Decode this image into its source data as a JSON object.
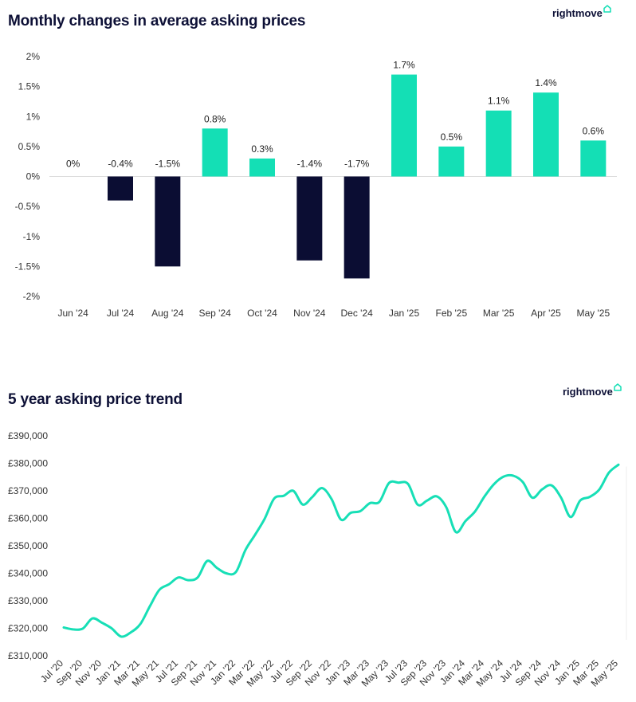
{
  "colors": {
    "positive": "#14dfb5",
    "negative": "#0b0d33",
    "line": "#17dfb6",
    "text": "#0d1036",
    "grid": "#e6e6e6"
  },
  "brand": {
    "name": "rightmove",
    "icon": "house-icon"
  },
  "chart_data": [
    {
      "type": "bar",
      "title": "Monthly changes in average asking prices",
      "categories": [
        "Jun '24",
        "Jul '24",
        "Aug '24",
        "Sep '24",
        "Oct '24",
        "Nov '24",
        "Dec '24",
        "Jan '25",
        "Feb '25",
        "Mar '25",
        "Apr '25",
        "May '25"
      ],
      "values": [
        0,
        -0.4,
        -1.5,
        0.8,
        0.3,
        -1.4,
        -1.7,
        1.7,
        0.5,
        1.1,
        1.4,
        0.6
      ],
      "data_labels": [
        "0%",
        "-0.4%",
        "-1.5%",
        "0.8%",
        "0.3%",
        "-1.4%",
        "-1.7%",
        "1.7%",
        "0.5%",
        "1.1%",
        "1.4%",
        "0.6%"
      ],
      "yticks": [
        2,
        1.5,
        1,
        0.5,
        0,
        -0.5,
        -1,
        -1.5,
        -2
      ],
      "ytick_labels": [
        "2%",
        "1.5%",
        "1%",
        "0.5%",
        "0%",
        "-0.5%",
        "-1%",
        "-1.5%",
        "-2%"
      ],
      "ylim": [
        -2,
        2
      ],
      "grid": false
    },
    {
      "type": "line",
      "title": "5 year asking price trend",
      "x_labels": [
        "Jul '20",
        "Sep '20",
        "Nov '20",
        "Jan '21",
        "Mar '21",
        "May '21",
        "Jul '21",
        "Sep '21",
        "Nov '21",
        "Jan '22",
        "Mar '22",
        "May '22",
        "Jul '22",
        "Sep '22",
        "Nov '22",
        "Jan '23",
        "Mar '23",
        "May '23",
        "Jul '23",
        "Sep '23",
        "Nov '23",
        "Jan '24",
        "Mar '24",
        "May '24",
        "Jul '24",
        "Sep '24",
        "Nov '24",
        "Jan '25",
        "Mar '25",
        "May '25"
      ],
      "x": [
        "Jul 2020",
        "Aug 2020",
        "Sep 2020",
        "Oct 2020",
        "Nov 2020",
        "Dec 2020",
        "Jan 2021",
        "Feb 2021",
        "Mar 2021",
        "Apr 2021",
        "May 2021",
        "Jun 2021",
        "Jul 2021",
        "Aug 2021",
        "Sep 2021",
        "Oct 2021",
        "Nov 2021",
        "Dec 2021",
        "Jan 2022",
        "Feb 2022",
        "Mar 2022",
        "Apr 2022",
        "May 2022",
        "Jun 2022",
        "Jul 2022",
        "Aug 2022",
        "Sep 2022",
        "Oct 2022",
        "Nov 2022",
        "Dec 2022",
        "Jan 2023",
        "Feb 2023",
        "Mar 2023",
        "Apr 2023",
        "May 2023",
        "Jun 2023",
        "Jul 2023",
        "Aug 2023",
        "Sep 2023",
        "Oct 2023",
        "Nov 2023",
        "Dec 2023",
        "Jan 2024",
        "Feb 2024",
        "Mar 2024",
        "Apr 2024",
        "May 2024",
        "Jun 2024",
        "Jul 2024",
        "Aug 2024",
        "Sep 2024",
        "Oct 2024",
        "Nov 2024",
        "Dec 2024",
        "Jan 2025",
        "Feb 2025",
        "Mar 2025",
        "Apr 2025",
        "May 2025"
      ],
      "values": [
        320300,
        319600,
        319900,
        323600,
        322000,
        320000,
        317000,
        318500,
        321500,
        328000,
        334000,
        336000,
        338500,
        337500,
        338500,
        344500,
        342000,
        340000,
        340500,
        348500,
        354000,
        359800,
        367200,
        368200,
        370000,
        365000,
        367800,
        371000,
        367000,
        359500,
        362000,
        362600,
        365500,
        366000,
        372800,
        373000,
        372500,
        365000,
        366500,
        368000,
        364000,
        355000,
        359000,
        362500,
        368000,
        372500,
        375200,
        375500,
        373200,
        367500,
        370500,
        372000,
        367500,
        360500,
        366500,
        367800,
        370500,
        376600,
        379500
      ],
      "yticks": [
        390000,
        380000,
        370000,
        360000,
        350000,
        340000,
        330000,
        320000,
        310000
      ],
      "ytick_labels": [
        "£390,000",
        "£380,000",
        "£370,000",
        "£360,000",
        "£350,000",
        "£340,000",
        "£330,000",
        "£320,000",
        "£310,000"
      ],
      "ylim": [
        310000,
        390000
      ],
      "grid": false
    }
  ]
}
